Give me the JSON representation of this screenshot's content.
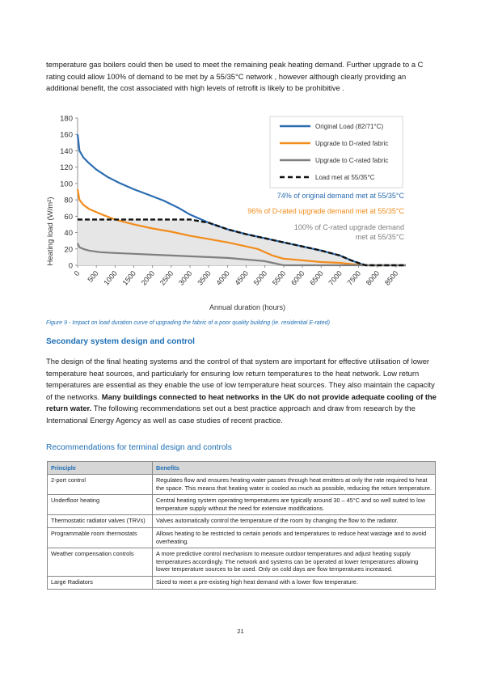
{
  "intro_text": "temperature gas boilers could then be used to meet the remaining peak heating demand.  Further upgrade to a C rating could allow 100% of demand to be met by a 55/35°C network , however although clearly providing an additional benefit, the cost associated with high levels of retrofit is likely to be prohibitive .",
  "chart_data": {
    "type": "line",
    "xlabel": "Annual duration (hours)",
    "ylabel": "Heating load (W/m²)",
    "xlim": [
      0,
      8760
    ],
    "ylim": [
      0,
      180
    ],
    "x_ticks": [
      "0",
      "500",
      "1000",
      "1500",
      "2000",
      "2500",
      "3000",
      "3500",
      "4000",
      "4500",
      "5000",
      "5500",
      "6000",
      "6500",
      "7000",
      "7500",
      "8000",
      "8500"
    ],
    "y_ticks": [
      "0",
      "20",
      "40",
      "60",
      "80",
      "100",
      "120",
      "140",
      "160",
      "180"
    ],
    "legend_position": "top-right",
    "colors": {
      "original": "#2b6cb0",
      "d_rated": "#f28c1c",
      "c_rated": "#7f7f7f",
      "load_met": "#111111"
    },
    "series": [
      {
        "name": "Original Load (82/71°C)",
        "color": "#2b6cb0",
        "style": "solid",
        "x": [
          0,
          50,
          150,
          300,
          500,
          800,
          1100,
          1500,
          1900,
          2300,
          2700,
          3000,
          3500,
          4000,
          4500,
          5000,
          5500,
          6000,
          6500,
          7000,
          7300,
          7550,
          7700,
          8000,
          8500,
          8760
        ],
        "y": [
          160,
          140,
          132,
          125,
          117,
          108,
          101,
          93,
          86,
          79,
          70,
          62,
          52,
          44,
          38,
          33,
          28,
          23,
          18,
          12,
          6,
          2,
          0,
          0,
          0,
          0
        ]
      },
      {
        "name": "Upgrade to D-rated fabric",
        "color": "#f28c1c",
        "style": "solid",
        "x": [
          0,
          50,
          150,
          300,
          600,
          1000,
          1500,
          2000,
          2500,
          3000,
          3500,
          4000,
          4500,
          4800,
          5200,
          5500,
          6000,
          6500,
          7000,
          7400,
          7600,
          8760
        ],
        "y": [
          93,
          80,
          74,
          69,
          63,
          56,
          50,
          45,
          41,
          36,
          32,
          28,
          23,
          20,
          12,
          8,
          6,
          4,
          3,
          1,
          0,
          0
        ]
      },
      {
        "name": "Upgrade to C-rated fabric",
        "color": "#7f7f7f",
        "style": "solid",
        "x": [
          0,
          50,
          150,
          300,
          600,
          1000,
          1500,
          2000,
          2500,
          3000,
          3500,
          4000,
          4500,
          5000,
          5300,
          5500,
          8760
        ],
        "y": [
          27,
          22,
          20,
          18,
          16,
          15,
          14,
          13,
          12,
          11,
          10,
          9,
          7,
          5,
          2,
          0,
          0
        ]
      },
      {
        "name": "Load met at 55/35°C",
        "color": "#111111",
        "style": "dashed",
        "x": [
          0,
          3000,
          3500,
          4000,
          4500,
          5000,
          5500,
          6000,
          6500,
          7000,
          7300,
          7550,
          7700,
          8000,
          8500,
          8760
        ],
        "y": [
          56,
          56,
          52,
          44,
          38,
          33,
          28,
          23,
          18,
          12,
          6,
          2,
          0,
          0,
          0,
          0
        ]
      }
    ],
    "annotations": [
      {
        "text": "74% of original demand met at 55/35°C",
        "color": "#2b6cb0"
      },
      {
        "text": "96% of D-rated upgrade demand met at 55/35°C",
        "color": "#f28c1c"
      },
      {
        "text_lines": [
          "100% of C-rated upgrade demand",
          "met at 55/35°C"
        ],
        "color": "#7f7f7f"
      }
    ]
  },
  "figure_caption": "Figure 9 - Impact on load duration curve of upgrading the fabric of a poor quality building (ie. residential E-rated)",
  "section_heading": "Secondary system design and control",
  "body_part1": "The design of the final heating systems and the control of that system are important for effective utilisation of lower temperature heat sources, and particularly for ensuring low return temperatures to the heat network. Low return temperatures are essential as they enable the use of low temperature heat sources. They also maintain the capacity of the networks. ",
  "body_bold": "Many buildings connected to heat networks in the UK do not provide adequate cooling of the return water.",
  "body_part2": " The following recommendations set out a best practice approach and draw from research by the International Energy Agency as well as case studies of recent practice.",
  "recommendations_heading": "Recommendations for terminal design and controls",
  "table": {
    "headers": [
      "Principle",
      "Benefits"
    ],
    "rows": [
      {
        "principle": "2-port control",
        "benefit": "Regulates flow and ensures heating water passes through heat emitters at only the rate required to heat the space. This means that heating water is cooled as much as possible, reducing the return temperature."
      },
      {
        "principle": "Underfloor heating",
        "benefit": "Central heating system operating temperatures are typically around 30 – 45°C and so well suited to low temperature supply without the need for extensive modifications."
      },
      {
        "principle": "Thermostatic radiator valves (TRVs)",
        "benefit": "Valves automatically control the temperature of the room by changing the flow to the radiator."
      },
      {
        "principle": "Programmable room thermostats",
        "benefit": "Allows heating to be restricted to certain periods and temperatures to reduce heat wastage and to avoid overheating."
      },
      {
        "principle": "Weather compensation controls",
        "benefit": "A more predictive control mechanism to measure outdoor temperatures and adjust heating supply temperatures accordingly. The network and systems can be operated at lower temperatures allowing lower temperature sources to be used. Only on cold days are flow temperatures increased."
      },
      {
        "principle": "Large Radiators",
        "benefit": "Sized to meet a pre-existing high heat demand with a lower flow temperature."
      }
    ]
  },
  "page_number": "21"
}
